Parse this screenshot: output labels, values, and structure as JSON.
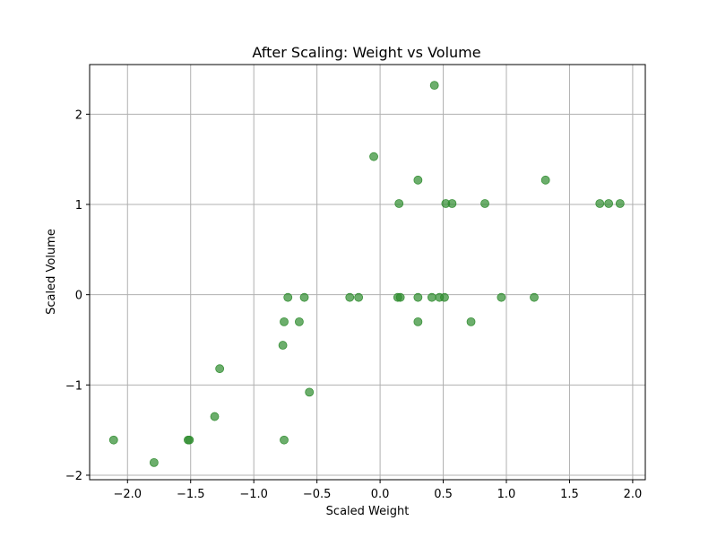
{
  "chart_data": {
    "type": "scatter",
    "title": "After Scaling: Weight vs Volume",
    "xlabel": "Scaled Weight",
    "ylabel": "Scaled Volume",
    "xlim": [
      -2.3,
      2.1
    ],
    "ylim": [
      -2.05,
      2.55
    ],
    "xticks": [
      -2.0,
      -1.5,
      -1.0,
      -0.5,
      0.0,
      0.5,
      1.0,
      1.5,
      2.0
    ],
    "xtick_labels": [
      "−2.0",
      "−1.5",
      "−1.0",
      "−0.5",
      "0.0",
      "0.5",
      "1.0",
      "1.5",
      "2.0"
    ],
    "yticks": [
      -2,
      -1,
      0,
      1,
      2
    ],
    "ytick_labels": [
      "−2",
      "−1",
      "0",
      "1",
      "2"
    ],
    "grid": true,
    "marker_color": "#2e8b2e",
    "marker_opacity": 0.7,
    "points": [
      {
        "x": 0.43,
        "y": 2.32
      },
      {
        "x": -0.05,
        "y": 1.53
      },
      {
        "x": 0.3,
        "y": 1.27
      },
      {
        "x": 1.31,
        "y": 1.27
      },
      {
        "x": 0.15,
        "y": 1.01
      },
      {
        "x": 0.52,
        "y": 1.01
      },
      {
        "x": 0.57,
        "y": 1.01
      },
      {
        "x": 0.83,
        "y": 1.01
      },
      {
        "x": 1.74,
        "y": 1.01
      },
      {
        "x": 1.81,
        "y": 1.01
      },
      {
        "x": 1.9,
        "y": 1.01
      },
      {
        "x": -0.73,
        "y": -0.03
      },
      {
        "x": -0.6,
        "y": -0.03
      },
      {
        "x": -0.24,
        "y": -0.03
      },
      {
        "x": -0.17,
        "y": -0.03
      },
      {
        "x": 0.14,
        "y": -0.03
      },
      {
        "x": 0.16,
        "y": -0.03
      },
      {
        "x": 0.3,
        "y": -0.03
      },
      {
        "x": 0.41,
        "y": -0.03
      },
      {
        "x": 0.47,
        "y": -0.03
      },
      {
        "x": 0.51,
        "y": -0.03
      },
      {
        "x": 0.96,
        "y": -0.03
      },
      {
        "x": 1.22,
        "y": -0.03
      },
      {
        "x": -0.76,
        "y": -0.3
      },
      {
        "x": -0.64,
        "y": -0.3
      },
      {
        "x": 0.3,
        "y": -0.3
      },
      {
        "x": 0.72,
        "y": -0.3
      },
      {
        "x": -0.77,
        "y": -0.56
      },
      {
        "x": -1.27,
        "y": -0.82
      },
      {
        "x": -0.56,
        "y": -1.08
      },
      {
        "x": -1.31,
        "y": -1.35
      },
      {
        "x": -2.11,
        "y": -1.61
      },
      {
        "x": -1.52,
        "y": -1.61
      },
      {
        "x": -1.51,
        "y": -1.61
      },
      {
        "x": -0.76,
        "y": -1.61
      },
      {
        "x": -1.79,
        "y": -1.86
      }
    ]
  }
}
